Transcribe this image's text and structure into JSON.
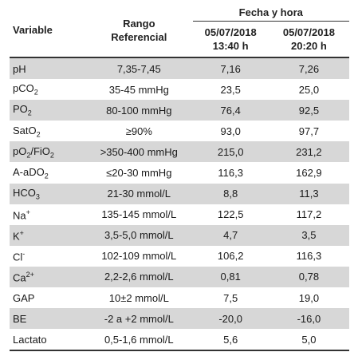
{
  "header": {
    "variable": "Variable",
    "rango_line1": "Rango",
    "rango_line2": "Referencial",
    "fecha_hora": "Fecha y hora",
    "col1_date": "05/07/2018",
    "col1_time": "13:40 h",
    "col2_date": "05/07/2018",
    "col2_time": "20:20 h"
  },
  "rows": [
    {
      "var": "pH",
      "ref": "7,35-7,45",
      "v1": "7,16",
      "v2": "7,26"
    },
    {
      "var": "pCO",
      "sub": "2",
      "ref": "35-45 mmHg",
      "v1": "23,5",
      "v2": "25,0"
    },
    {
      "var": "PO",
      "sub": "2",
      "ref": "80-100 mmHg",
      "v1": "76,4",
      "v2": "92,5"
    },
    {
      "var": "SatO",
      "sub": "2",
      "ref": "≥90%",
      "v1": "93,0",
      "v2": "97,7"
    },
    {
      "var": "pO",
      "sub": "2",
      "var_b": "/FiO",
      "sub_b": "2",
      "ref": ">350-400 mmHg",
      "v1": "215,0",
      "v2": "231,2"
    },
    {
      "var": "A-aDO",
      "sub": "2",
      "ref": "≤20-30 mmHg",
      "v1": "116,3",
      "v2": "162,9"
    },
    {
      "var": "HCO",
      "sub": "3",
      "ref": "21-30 mmol/L",
      "v1": "8,8",
      "v2": "11,3"
    },
    {
      "var": "Na",
      "sup": "+",
      "ref": "135-145 mmol/L",
      "v1": "122,5",
      "v2": "117,2"
    },
    {
      "var": "K",
      "sup": "+",
      "ref": "3,5-5,0 mmol/L",
      "v1": "4,7",
      "v2": "3,5"
    },
    {
      "var": "Cl",
      "sup": "-",
      "ref": "102-109 mmol/L",
      "v1": "106,2",
      "v2": "116,3"
    },
    {
      "var": "Ca",
      "sup": "2+",
      "ref": "2,2-2,6 mmol/L",
      "v1": "0,81",
      "v2": "0,78"
    },
    {
      "var": "GAP",
      "ref": "10±2 mmol/L",
      "v1": "7,5",
      "v2": "19,0"
    },
    {
      "var": "BE",
      "ref": "-2 a +2 mmol/L",
      "v1": "-20,0",
      "v2": "-16,0"
    },
    {
      "var": "Lactato",
      "ref": "0,5-1,6 mmol/L",
      "v1": "5,6",
      "v2": "5,0"
    }
  ]
}
